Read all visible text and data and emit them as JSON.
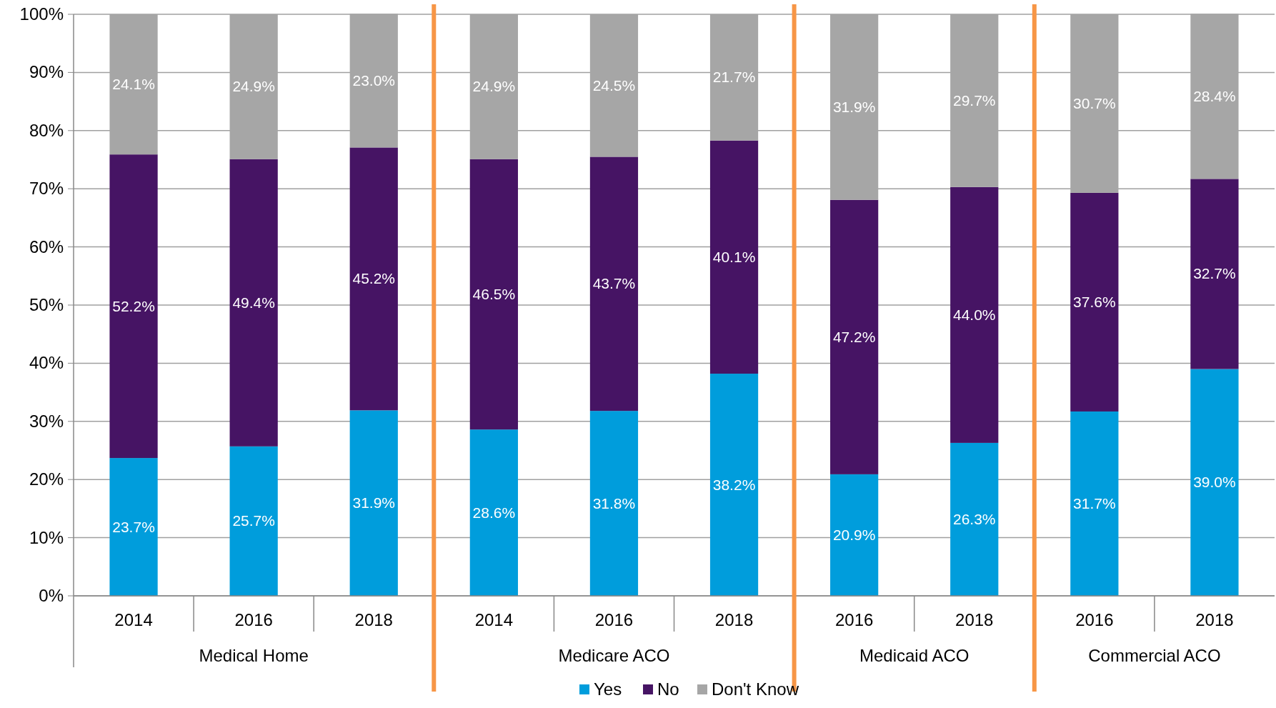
{
  "chart_data": {
    "type": "bar",
    "stacked": true,
    "categories": [
      "2014",
      "2016",
      "2018",
      "2014",
      "2016",
      "2018",
      "2016",
      "2018",
      "2016",
      "2018"
    ],
    "series": [
      {
        "name": "Yes",
        "color": "#009ddc",
        "values": [
          23.7,
          25.7,
          31.9,
          28.6,
          31.8,
          38.2,
          20.9,
          26.3,
          31.7,
          39.0
        ],
        "value_labels": [
          "23.7%",
          "25.7%",
          "31.9%",
          "28.6%",
          "31.8%",
          "38.2%",
          "20.9%",
          "26.3%",
          "31.7%",
          "39.0%"
        ]
      },
      {
        "name": "No",
        "color": "#461464",
        "values": [
          52.2,
          49.4,
          45.2,
          46.5,
          43.7,
          40.1,
          47.2,
          44.0,
          37.6,
          32.7
        ],
        "value_labels": [
          "52.2%",
          "49.4%",
          "45.2%",
          "46.5%",
          "43.7%",
          "40.1%",
          "47.2%",
          "44.0%",
          "37.6%",
          "32.7%"
        ]
      },
      {
        "name": "Don't Know",
        "color": "#a6a6a6",
        "values": [
          24.1,
          24.9,
          23.0,
          24.9,
          24.5,
          21.7,
          31.9,
          29.7,
          30.7,
          28.4
        ],
        "value_labels": [
          "24.1%",
          "24.9%",
          "23.0%",
          "24.9%",
          "24.5%",
          "21.7%",
          "31.9%",
          "29.7%",
          "30.7%",
          "28.4%"
        ]
      }
    ],
    "ylim": [
      0,
      100
    ],
    "yticks": [
      {
        "value": 0,
        "label": "0%"
      },
      {
        "value": 10,
        "label": "10%"
      },
      {
        "value": 20,
        "label": "20%"
      },
      {
        "value": 30,
        "label": "30%"
      },
      {
        "value": 40,
        "label": "40%"
      },
      {
        "value": 50,
        "label": "50%"
      },
      {
        "value": 60,
        "label": "60%"
      },
      {
        "value": 70,
        "label": "70%"
      },
      {
        "value": 80,
        "label": "80%"
      },
      {
        "value": 90,
        "label": "90%"
      },
      {
        "value": 100,
        "label": "100%"
      }
    ],
    "grid": "y",
    "legend": "bottom",
    "annotations": [
      "Medical Home",
      "Medicare ACO",
      "Medicaid ACO",
      "Commercial ACO"
    ]
  }
}
